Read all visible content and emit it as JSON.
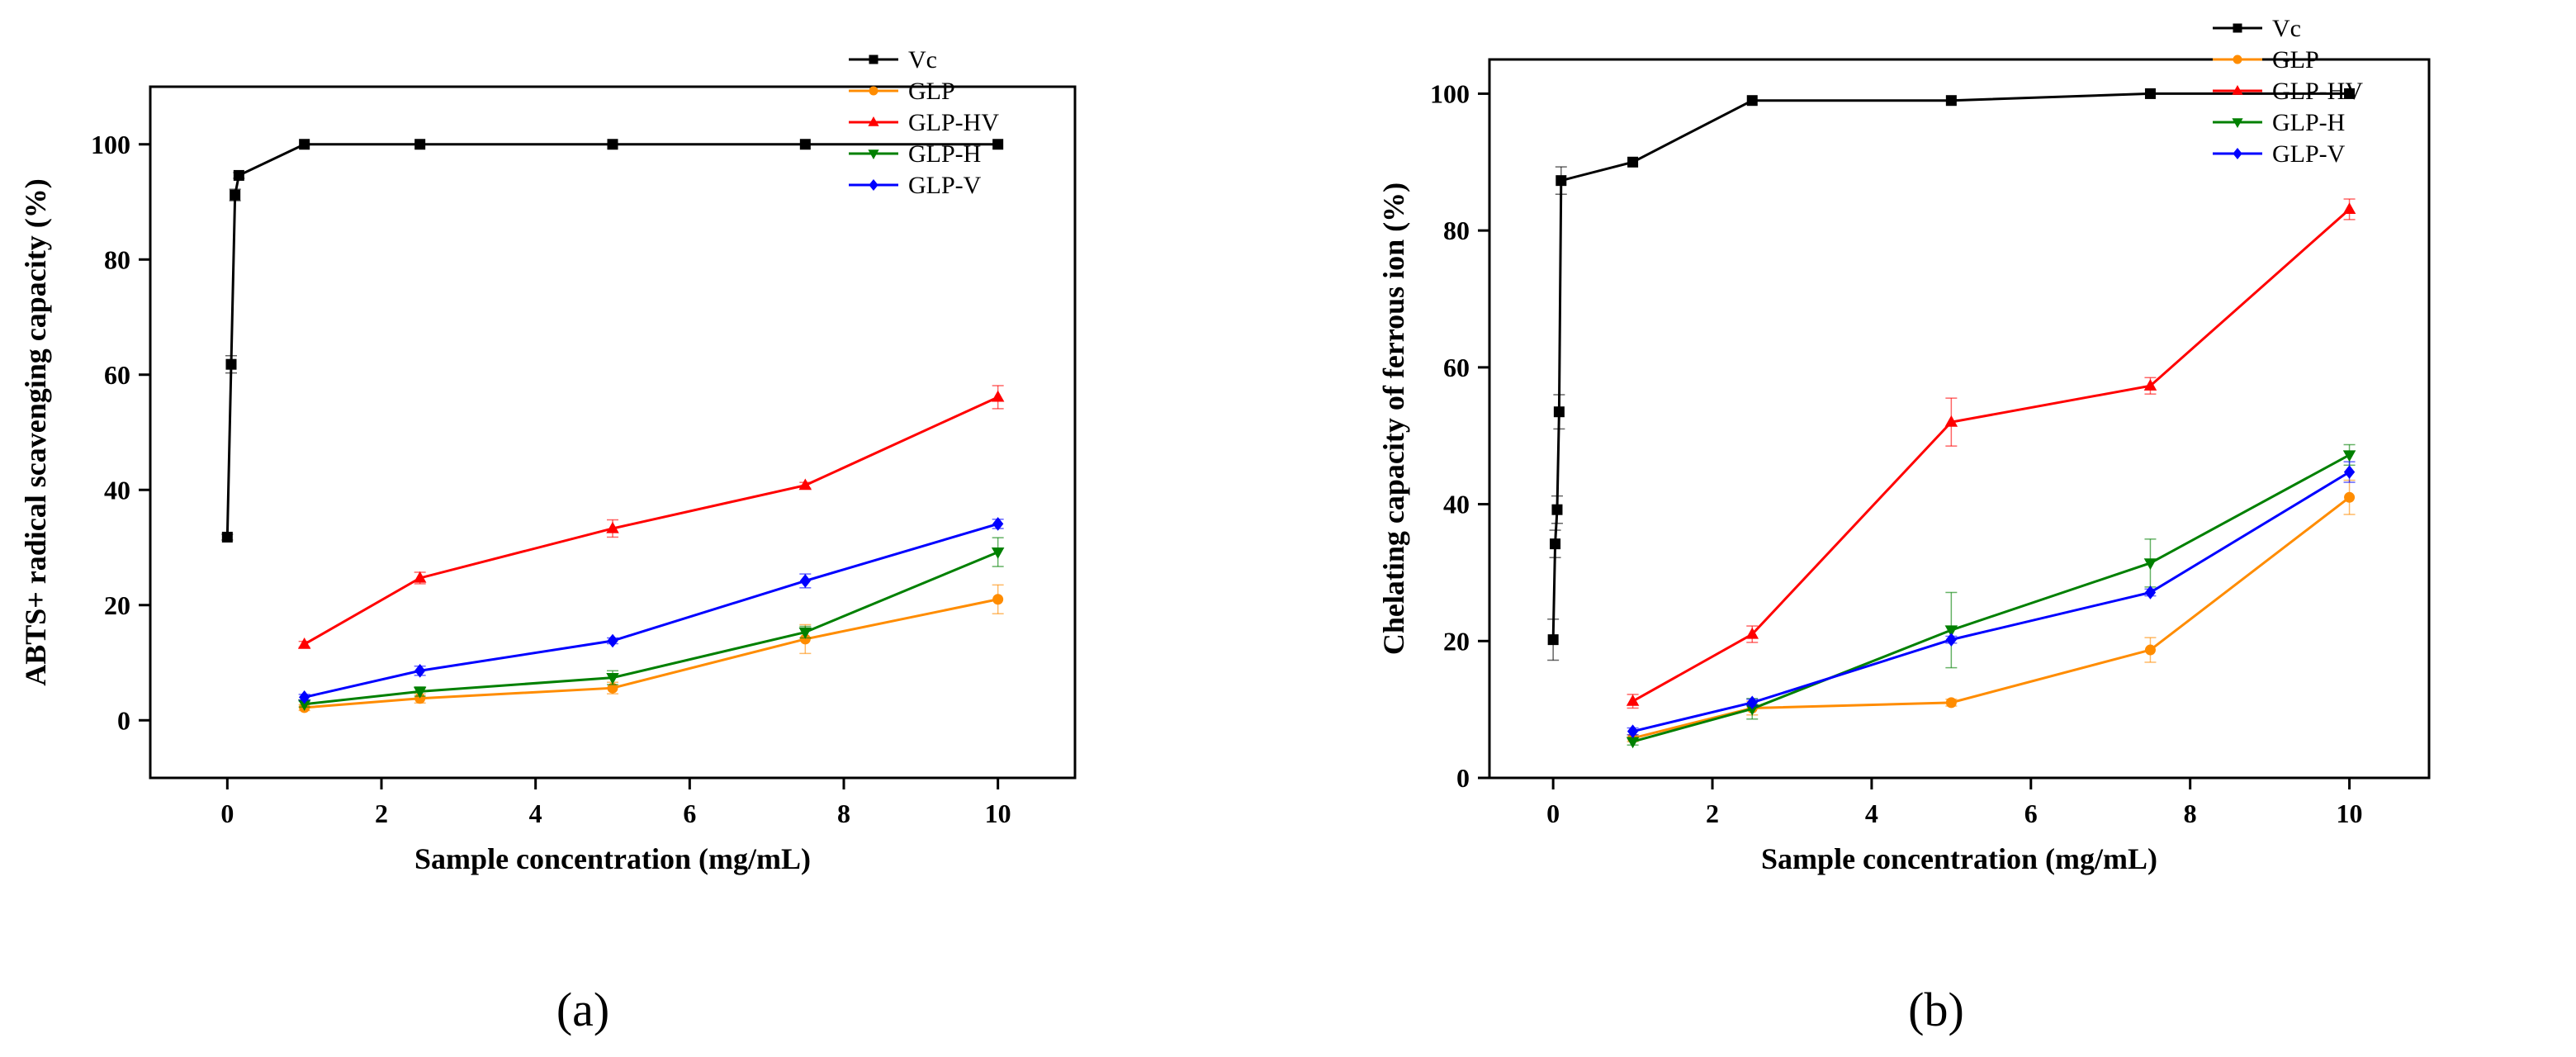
{
  "panel_labels": [
    "(a)",
    "(b)"
  ],
  "chart_data": [
    {
      "type": "line",
      "panel_label": "(a)",
      "xlabel": "Sample concentration (mg/mL)",
      "ylabel": "ABTS+ radical scavenging capacity (%)",
      "xlim": [
        -1,
        11
      ],
      "ylim": [
        -10,
        110
      ],
      "xticks": [
        0,
        2,
        4,
        6,
        8,
        10
      ],
      "yticks": [
        0,
        20,
        40,
        60,
        80,
        100
      ],
      "grid": false,
      "legend_position": "top-right",
      "series": [
        {
          "name": "Vc",
          "color": "#000000",
          "marker": "square",
          "x": [
            0,
            0.05,
            0.1,
            0.15,
            1,
            2.5,
            5,
            7.5,
            10
          ],
          "y": [
            31.8,
            61.8,
            91.2,
            94.6,
            100,
            100,
            100,
            100,
            100
          ],
          "err": [
            0.5,
            1.5,
            1.0,
            0.5,
            0,
            0,
            0,
            0,
            0
          ]
        },
        {
          "name": "GLP",
          "color": "#ff8c00",
          "marker": "circle",
          "x": [
            1,
            2.5,
            5,
            7.5,
            10
          ],
          "y": [
            2.2,
            3.8,
            5.6,
            14.1,
            21.0
          ],
          "err": [
            0.5,
            0.8,
            1.0,
            2.5,
            2.5
          ]
        },
        {
          "name": "GLP-HV",
          "color": "#ff0000",
          "marker": "triangle-up",
          "x": [
            1,
            2.5,
            5,
            7.5,
            10
          ],
          "y": [
            13.2,
            24.7,
            33.3,
            40.8,
            56.1
          ],
          "err": [
            0.5,
            1.0,
            1.5,
            0.5,
            2.0
          ]
        },
        {
          "name": "GLP-H",
          "color": "#008000",
          "marker": "triangle-down",
          "x": [
            1,
            2.5,
            5,
            7.5,
            10
          ],
          "y": [
            2.8,
            5.0,
            7.4,
            15.3,
            29.2
          ],
          "err": [
            0.5,
            0.8,
            1.2,
            1.0,
            2.5
          ]
        },
        {
          "name": "GLP-V",
          "color": "#0000ff",
          "marker": "diamond",
          "x": [
            1,
            2.5,
            5,
            7.5,
            10
          ],
          "y": [
            4.0,
            8.6,
            13.8,
            24.2,
            34.1
          ],
          "err": [
            0.5,
            0.8,
            0.5,
            1.2,
            0.8
          ]
        }
      ]
    },
    {
      "type": "line",
      "panel_label": "(b)",
      "xlabel": "Sample concentration (mg/mL)",
      "ylabel": "Chelating capacity of ferrous ion (%)",
      "xlim": [
        -0.8,
        11
      ],
      "ylim": [
        0,
        105
      ],
      "xticks": [
        0,
        2,
        4,
        6,
        8,
        10
      ],
      "yticks": [
        0,
        20,
        40,
        60,
        80,
        100
      ],
      "grid": false,
      "legend_position": "top-right",
      "series": [
        {
          "name": "Vc",
          "color": "#000000",
          "marker": "square",
          "x": [
            0,
            0.025,
            0.05,
            0.075,
            0.1,
            1,
            2.5,
            5,
            7.5,
            10
          ],
          "y": [
            20.2,
            34.2,
            39.2,
            53.5,
            87.3,
            90.0,
            99.0,
            99.0,
            100,
            100
          ],
          "err": [
            3.0,
            2.0,
            2.0,
            2.5,
            2.0,
            0,
            0,
            0,
            0,
            0
          ]
        },
        {
          "name": "GLP",
          "color": "#ff8c00",
          "marker": "circle",
          "x": [
            1,
            2.5,
            5,
            7.5,
            10
          ],
          "y": [
            5.8,
            10.2,
            11.0,
            18.7,
            41.0
          ],
          "err": [
            0.5,
            1.0,
            0.5,
            1.8,
            2.5
          ]
        },
        {
          "name": "GLP-HV",
          "color": "#ff0000",
          "marker": "triangle-up",
          "x": [
            1,
            2.5,
            5,
            7.5,
            10
          ],
          "y": [
            11.2,
            21.0,
            52.0,
            57.3,
            83.1
          ],
          "err": [
            1.0,
            1.2,
            3.5,
            1.2,
            1.5
          ]
        },
        {
          "name": "GLP-H",
          "color": "#008000",
          "marker": "triangle-down",
          "x": [
            1,
            2.5,
            5,
            7.5,
            10
          ],
          "y": [
            5.3,
            10.1,
            21.6,
            31.4,
            47.2
          ],
          "err": [
            0.5,
            1.5,
            5.5,
            3.5,
            1.5
          ]
        },
        {
          "name": "GLP-V",
          "color": "#0000ff",
          "marker": "diamond",
          "x": [
            1,
            2.5,
            5,
            7.5,
            10
          ],
          "y": [
            6.8,
            11.0,
            20.2,
            27.1,
            44.7
          ],
          "err": [
            0.5,
            0.5,
            0.5,
            0.5,
            1.5
          ]
        }
      ]
    }
  ]
}
